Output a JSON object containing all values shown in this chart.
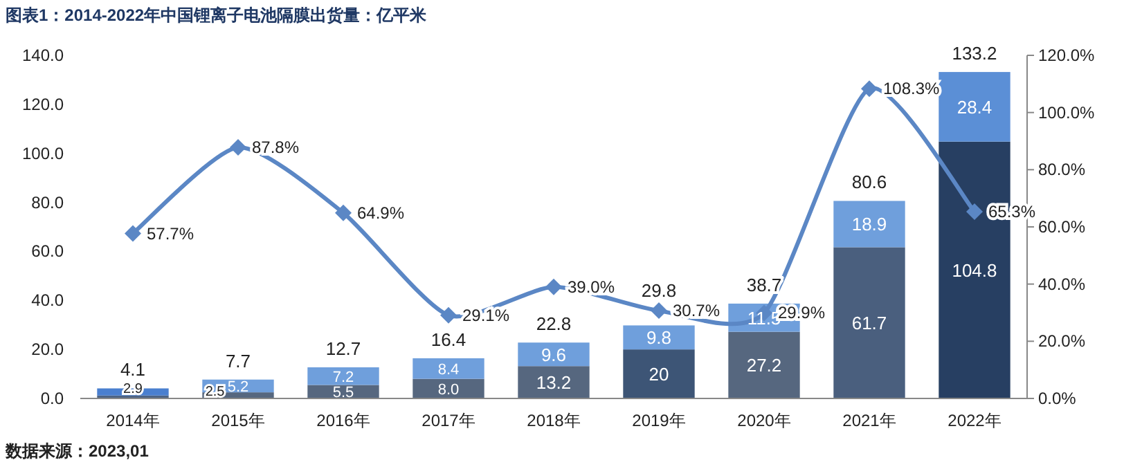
{
  "chart_data": {
    "type": "bar",
    "title": "图表1：2014-2022年中国锂离子电池隔膜出货量：亿平米",
    "annotations": [
      "数据来源：2023,01"
    ],
    "categories": [
      "2014年",
      "2015年",
      "2016年",
      "2017年",
      "2018年",
      "2019年",
      "2020年",
      "2021年",
      "2022年"
    ],
    "stacked": true,
    "series": [
      {
        "colors": [
          "#4d6384",
          "#56677f",
          "#56677f",
          "#56677f",
          "#56677f",
          "#3d5576",
          "#56677f",
          "#4a5f7e",
          "#273f62"
        ],
        "values": [
          1.2,
          2.5,
          5.5,
          8.0,
          13.2,
          20,
          27.2,
          61.7,
          104.8
        ],
        "value_labels": [
          null,
          "2.5",
          "5.5",
          "8.0",
          "13.2",
          "20",
          "27.2",
          "61.7",
          "104.8"
        ]
      },
      {
        "colors": [
          "#4a7fcf",
          "#6f9fdc",
          "#6f9fdc",
          "#6f9fdc",
          "#6f9fdc",
          "#6f9fdc",
          "#6f9fdc",
          "#6f9fdc",
          "#5b8fd6"
        ],
        "values": [
          2.9,
          5.2,
          7.2,
          8.4,
          9.6,
          9.8,
          11.5,
          18.9,
          28.4
        ],
        "value_labels": [
          "2.9",
          "5.2",
          "7.2",
          "8.4",
          "9.6",
          "9.8",
          "11.5",
          "18.9",
          "28.4"
        ]
      },
      {
        "type": "line",
        "axis": "y2",
        "color": "#5b87c5",
        "marker": "diamond",
        "values": [
          57.7,
          87.8,
          64.9,
          29.1,
          39.0,
          30.7,
          29.9,
          108.3,
          65.3
        ],
        "value_labels": [
          "57.7%",
          "87.8%",
          "64.9%",
          "29.1%",
          "39.0%",
          "30.7%",
          "29.9%",
          "108.3%",
          "65.3%"
        ]
      }
    ],
    "totals": [
      "4.1",
      "7.7",
      "12.7",
      "16.4",
      "22.8",
      "29.8",
      "38.7",
      "80.6",
      "133.2"
    ],
    "ylim": [
      0,
      140
    ],
    "yticks": [
      {
        "value": 0,
        "label": "0.0"
      },
      {
        "value": 20,
        "label": "20.0"
      },
      {
        "value": 40,
        "label": "40.0"
      },
      {
        "value": 60,
        "label": "60.0"
      },
      {
        "value": 80,
        "label": "80.0"
      },
      {
        "value": 100,
        "label": "100.0"
      },
      {
        "value": 120,
        "label": "120.0"
      },
      {
        "value": 140,
        "label": "140.0"
      }
    ],
    "y2lim": [
      0,
      120
    ],
    "y2ticks": [
      {
        "value": 0,
        "label": "0.0%"
      },
      {
        "value": 20,
        "label": "20.0%"
      },
      {
        "value": 40,
        "label": "40.0%"
      },
      {
        "value": 60,
        "label": "60.0%"
      },
      {
        "value": 80,
        "label": "80.0%"
      },
      {
        "value": 100,
        "label": "100.0%"
      },
      {
        "value": 120,
        "label": "120.0%"
      }
    ],
    "grid": false
  }
}
